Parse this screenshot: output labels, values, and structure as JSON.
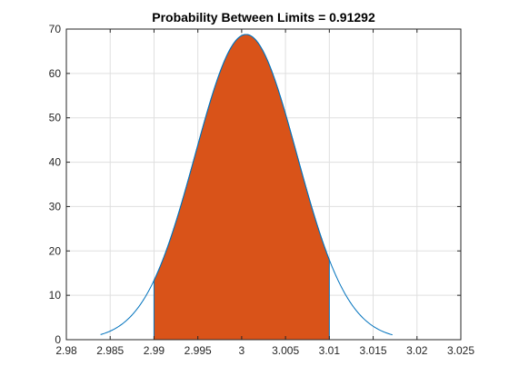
{
  "chart_data": {
    "type": "area",
    "title": "Probability Between Limits = 0.91292",
    "xlabel": "",
    "ylabel": "",
    "xlim": [
      2.98,
      3.025
    ],
    "ylim": [
      0,
      70
    ],
    "x_ticks": [
      "2.98",
      "2.985",
      "2.99",
      "2.995",
      "3",
      "3.005",
      "3.01",
      "3.015",
      "3.02",
      "3.025"
    ],
    "y_ticks": [
      "0",
      "10",
      "20",
      "30",
      "40",
      "50",
      "60",
      "70"
    ],
    "grid": true,
    "legend": "none",
    "curve": {
      "distribution": "normal",
      "mean": 3.0005,
      "sigma": 0.0058,
      "x_range": [
        2.9839,
        3.0172
      ],
      "color": "#0072bd"
    },
    "shaded_region": {
      "x_range": [
        2.99,
        3.01
      ],
      "probability": 0.91292,
      "fill_color": "#d95319",
      "edge_color": "#0072bd"
    }
  }
}
